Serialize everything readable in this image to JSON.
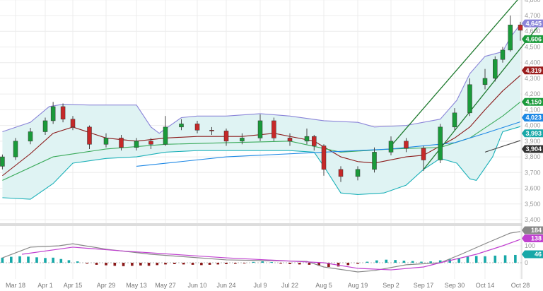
{
  "chart_data": {
    "type": "candlestick",
    "price_axis": {
      "ticks": [
        "4,800",
        "4,700",
        "4,600",
        "4,500",
        "4,400",
        "4,300",
        "4,200",
        "4,100",
        "4,000",
        "3,900",
        "3,800",
        "3,700",
        "3,600",
        "3,500",
        "3,400"
      ],
      "range": [
        3400,
        4700
      ]
    },
    "date_ticks": [
      "Mar 18",
      "Apr 1",
      "Apr 15",
      "Apr 29",
      "May 13",
      "May 27",
      "Jun 10",
      "Jun 24",
      "Jul 9",
      "Jul 22",
      "Aug 5",
      "Aug 19",
      "Sep 2",
      "Sep 17",
      "Sep 30",
      "Oct 14",
      "Oct 28"
    ],
    "grid": true,
    "candles": [
      [
        "Mar 12",
        3740,
        3815,
        3720,
        3800
      ],
      [
        "Mar 18",
        3800,
        3920,
        3780,
        3900
      ],
      [
        "Mar 25",
        3900,
        3985,
        3880,
        3960
      ],
      [
        "Apr 1",
        3960,
        4050,
        3940,
        4030
      ],
      [
        "Apr 5",
        4030,
        4150,
        4010,
        4120
      ],
      [
        "Apr 10",
        4120,
        4140,
        4020,
        4040
      ],
      [
        "Apr 15",
        4040,
        4060,
        3970,
        3990
      ],
      [
        "Apr 22",
        3990,
        4000,
        3850,
        3880
      ],
      [
        "Apr 29",
        3880,
        3950,
        3860,
        3920
      ],
      [
        "May 6",
        3920,
        3940,
        3840,
        3860
      ],
      [
        "May 13",
        3860,
        3920,
        3840,
        3900
      ],
      [
        "May 20",
        3900,
        3920,
        3850,
        3880
      ],
      [
        "May 27",
        3880,
        4060,
        3870,
        3990
      ],
      [
        "Jun 3",
        3990,
        4040,
        3970,
        4010
      ],
      [
        "Jun 10",
        4010,
        4030,
        3950,
        3970
      ],
      [
        "Jun 17",
        3970,
        3990,
        3940,
        3965
      ],
      [
        "Jun 24",
        3965,
        3980,
        3870,
        3900
      ],
      [
        "Jul 1",
        3900,
        3950,
        3880,
        3920
      ],
      [
        "Jul 9",
        3920,
        4070,
        3900,
        4030
      ],
      [
        "Jul 15",
        4030,
        4050,
        3900,
        3920
      ],
      [
        "Jul 22",
        3920,
        3950,
        3870,
        3900
      ],
      [
        "Jul 29",
        3900,
        3980,
        3880,
        3930
      ],
      [
        "Aug 1",
        3930,
        3940,
        3840,
        3870
      ],
      [
        "Aug 5",
        3870,
        3880,
        3680,
        3720
      ],
      [
        "Aug 12",
        3720,
        3740,
        3640,
        3675
      ],
      [
        "Aug 19",
        3675,
        3740,
        3650,
        3720
      ],
      [
        "Aug 26",
        3720,
        3860,
        3700,
        3830
      ],
      [
        "Sep 2",
        3830,
        3930,
        3810,
        3900
      ],
      [
        "Sep 9",
        3900,
        3920,
        3830,
        3855
      ],
      [
        "Sep 17",
        3855,
        3870,
        3710,
        3780
      ],
      [
        "Sep 24",
        3780,
        4010,
        3760,
        3990
      ],
      [
        "Sep 30",
        3990,
        4110,
        3970,
        4080
      ],
      [
        "Oct 7",
        4080,
        4300,
        4060,
        4260
      ],
      [
        "Oct 14",
        4260,
        4360,
        4230,
        4300
      ],
      [
        "Oct 18",
        4300,
        4440,
        4280,
        4420
      ],
      [
        "Oct 21",
        4420,
        4500,
        4400,
        4480
      ],
      [
        "Oct 24",
        4480,
        4700,
        4470,
        4640
      ],
      [
        "Oct 28",
        4640,
        4660,
        4540,
        4606
      ]
    ],
    "series": [
      {
        "key": "bb_upper",
        "color": "#8a84d8",
        "values": [
          [
            "Mar 12",
            3960
          ],
          [
            "Mar 25",
            4020
          ],
          [
            "Apr 3",
            4120
          ],
          [
            "Apr 10",
            4135
          ],
          [
            "Apr 22",
            4130
          ],
          [
            "May 6",
            4130
          ],
          [
            "May 13",
            4130
          ],
          [
            "May 20",
            3990
          ],
          [
            "May 24",
            3950
          ],
          [
            "Jun 3",
            4050
          ],
          [
            "Jun 10",
            4060
          ],
          [
            "Jun 24",
            4060
          ],
          [
            "Jul 9",
            4075
          ],
          [
            "Jul 22",
            4060
          ],
          [
            "Aug 5",
            4030
          ],
          [
            "Aug 19",
            4020
          ],
          [
            "Aug 26",
            3990
          ],
          [
            "Sep 9",
            4000
          ],
          [
            "Sep 24",
            4040
          ],
          [
            "Oct 1",
            4160
          ],
          [
            "Oct 7",
            4330
          ],
          [
            "Oct 14",
            4440
          ],
          [
            "Oct 21",
            4470
          ],
          [
            "Oct 24",
            4560
          ],
          [
            "Oct 28",
            4645
          ]
        ]
      },
      {
        "key": "bb_lower",
        "color": "#1bb0b8",
        "values": [
          [
            "Mar 12",
            3540
          ],
          [
            "Mar 25",
            3530
          ],
          [
            "Apr 5",
            3630
          ],
          [
            "Apr 15",
            3760
          ],
          [
            "Apr 29",
            3790
          ],
          [
            "May 13",
            3800
          ],
          [
            "May 27",
            3830
          ],
          [
            "Jun 10",
            3840
          ],
          [
            "Jul 9",
            3840
          ],
          [
            "Jul 22",
            3840
          ],
          [
            "Aug 1",
            3830
          ],
          [
            "Aug 5",
            3740
          ],
          [
            "Aug 12",
            3570
          ],
          [
            "Aug 19",
            3560
          ],
          [
            "Aug 30",
            3570
          ],
          [
            "Sep 9",
            3620
          ],
          [
            "Sep 17",
            3720
          ],
          [
            "Sep 24",
            3790
          ],
          [
            "Oct 1",
            3760
          ],
          [
            "Oct 7",
            3660
          ],
          [
            "Oct 10",
            3650
          ],
          [
            "Oct 17",
            3800
          ],
          [
            "Oct 21",
            3960
          ],
          [
            "Oct 28",
            3993
          ]
        ]
      },
      {
        "key": "ma_short",
        "color": "#8b1a1a",
        "values": [
          [
            "Mar 12",
            3680
          ],
          [
            "Mar 25",
            3820
          ],
          [
            "Apr 5",
            3950
          ],
          [
            "Apr 15",
            3990
          ],
          [
            "Apr 29",
            3920
          ],
          [
            "May 13",
            3900
          ],
          [
            "May 27",
            3920
          ],
          [
            "Jun 10",
            3930
          ],
          [
            "Jul 1",
            3930
          ],
          [
            "Jul 15",
            3950
          ],
          [
            "Aug 1",
            3900
          ],
          [
            "Aug 12",
            3800
          ],
          [
            "Aug 19",
            3770
          ],
          [
            "Aug 26",
            3760
          ],
          [
            "Sep 9",
            3800
          ],
          [
            "Sep 17",
            3810
          ],
          [
            "Sep 30",
            3920
          ],
          [
            "Oct 7",
            3990
          ],
          [
            "Oct 14",
            4100
          ],
          [
            "Oct 21",
            4220
          ],
          [
            "Oct 28",
            4319
          ]
        ]
      },
      {
        "key": "ma_mid",
        "color": "#3aaa5a",
        "values": [
          [
            "Mar 12",
            3650
          ],
          [
            "Apr 5",
            3800
          ],
          [
            "Apr 29",
            3850
          ],
          [
            "May 27",
            3880
          ],
          [
            "Jun 24",
            3890
          ],
          [
            "Jul 22",
            3900
          ],
          [
            "Aug 12",
            3830
          ],
          [
            "Sep 2",
            3850
          ],
          [
            "Sep 24",
            3860
          ],
          [
            "Oct 7",
            3920
          ],
          [
            "Oct 21",
            4060
          ],
          [
            "Oct 28",
            4150
          ]
        ]
      },
      {
        "key": "ma_long",
        "color": "#1e88e5",
        "values": [
          [
            "May 13",
            3740
          ],
          [
            "Jun 24",
            3800
          ],
          [
            "Aug 5",
            3830
          ],
          [
            "Sep 2",
            3850
          ],
          [
            "Sep 30",
            3890
          ],
          [
            "Oct 14",
            3950
          ],
          [
            "Oct 28",
            4023
          ]
        ]
      },
      {
        "key": "ma_gray",
        "color": "#444444",
        "values": [
          [
            "Oct 14",
            3830
          ],
          [
            "Oct 28",
            3904
          ]
        ]
      },
      {
        "key": "channel_upper",
        "color": "#1e7a2e",
        "values": [
          [
            "Sep 2",
            3870
          ],
          [
            "Oct 28",
            4820
          ]
        ]
      },
      {
        "key": "channel_lower",
        "color": "#1e7a2e",
        "values": [
          [
            "Sep 17",
            3720
          ],
          [
            "Oct 28",
            4490
          ]
        ]
      }
    ],
    "price_labels": [
      {
        "text": "4,645",
        "value": 4645,
        "color": "#8a84d8"
      },
      {
        "text": "4,606",
        "value": 4606,
        "color": "#1a9a3a"
      },
      {
        "text": "4,319",
        "value": 4319,
        "color": "#9b1c1c"
      },
      {
        "text": "4,150",
        "value": 4150,
        "color": "#1a9a3a"
      },
      {
        "text": "4,023",
        "value": 4023,
        "color": "#1e88e5"
      },
      {
        "text": "3,993",
        "value": 3993,
        "color": "#17a8a8"
      },
      {
        "text": "3,904",
        "value": 3904,
        "color": "#333333"
      }
    ],
    "indicator": {
      "ticks": [
        "100",
        "0"
      ],
      "range": [
        -96,
        208
      ],
      "line1": {
        "color": "#888888",
        "values": [
          [
            "Mar 12",
            29
          ],
          [
            "Mar 25",
            92
          ],
          [
            "Apr 8",
            100
          ],
          [
            "Apr 15",
            112
          ],
          [
            "Apr 29",
            80
          ],
          [
            "May 20",
            50
          ],
          [
            "Jun 24",
            17
          ],
          [
            "Jul 29",
            8
          ],
          [
            "Aug 5",
            -25
          ],
          [
            "Aug 19",
            -54
          ],
          [
            "Aug 26",
            -46
          ],
          [
            "Sep 9",
            -12
          ],
          [
            "Sep 24",
            0
          ],
          [
            "Oct 3",
            50
          ],
          [
            "Oct 14",
            112
          ],
          [
            "Oct 24",
            175
          ],
          [
            "Oct 28",
            184
          ]
        ]
      },
      "line2": {
        "color": "#c040d0",
        "values": [
          [
            "Mar 21",
            50
          ],
          [
            "Apr 15",
            92
          ],
          [
            "May 6",
            70
          ],
          [
            "Jun 24",
            29
          ],
          [
            "Aug 5",
            0
          ],
          [
            "Aug 19",
            -33
          ],
          [
            "Sep 2",
            -42
          ],
          [
            "Sep 17",
            -25
          ],
          [
            "Sep 24",
            0
          ],
          [
            "Oct 10",
            50
          ],
          [
            "Oct 21",
            100
          ],
          [
            "Oct 28",
            138
          ]
        ]
      },
      "pos_color": "#17a8a8",
      "neg_color": "#8b1a1a",
      "histogram": [
        [
          "Mar 12",
          30
        ],
        [
          "Mar 16",
          35
        ],
        [
          "Mar 20",
          38
        ],
        [
          "Mar 24",
          36
        ],
        [
          "Mar 28",
          32
        ],
        [
          "Apr 1",
          28
        ],
        [
          "Apr 5",
          30
        ],
        [
          "Apr 9",
          22
        ],
        [
          "Apr 13",
          15
        ],
        [
          "Apr 17",
          8
        ],
        [
          "Apr 21",
          -5
        ],
        [
          "Apr 25",
          -12
        ],
        [
          "Apr 29",
          -15
        ],
        [
          "May 3",
          -18
        ],
        [
          "May 7",
          -20
        ],
        [
          "May 11",
          -18
        ],
        [
          "May 15",
          -16
        ],
        [
          "May 19",
          -18
        ],
        [
          "May 23",
          -14
        ],
        [
          "May 27",
          -10
        ],
        [
          "May 31",
          -8
        ],
        [
          "Jun 4",
          -10
        ],
        [
          "Jun 8",
          -12
        ],
        [
          "Jun 12",
          -14
        ],
        [
          "Jun 16",
          -12
        ],
        [
          "Jun 20",
          -10
        ],
        [
          "Jun 24",
          -8
        ],
        [
          "Jun 28",
          -6
        ],
        [
          "Jul 2",
          -4
        ],
        [
          "Jul 6",
          5
        ],
        [
          "Jul 10",
          8
        ],
        [
          "Jul 14",
          4
        ],
        [
          "Jul 18",
          -5
        ],
        [
          "Jul 22",
          -8
        ],
        [
          "Jul 26",
          -10
        ],
        [
          "Jul 30",
          -12
        ],
        [
          "Aug 3",
          -18
        ],
        [
          "Aug 7",
          -25
        ],
        [
          "Aug 11",
          -22
        ],
        [
          "Aug 15",
          -14
        ],
        [
          "Aug 19",
          -6
        ],
        [
          "Aug 23",
          6
        ],
        [
          "Aug 27",
          14
        ],
        [
          "Aug 31",
          18
        ],
        [
          "Sep 4",
          16
        ],
        [
          "Sep 8",
          12
        ],
        [
          "Sep 12",
          10
        ],
        [
          "Sep 16",
          6
        ],
        [
          "Sep 20",
          8
        ],
        [
          "Sep 24",
          14
        ],
        [
          "Sep 28",
          20
        ],
        [
          "Oct 2",
          28
        ],
        [
          "Oct 6",
          36
        ],
        [
          "Oct 10",
          40
        ],
        [
          "Oct 14",
          38
        ],
        [
          "Oct 18",
          42
        ],
        [
          "Oct 22",
          44
        ],
        [
          "Oct 26",
          46
        ]
      ],
      "labels": [
        {
          "text": "184",
          "value": 184,
          "color": "#888888"
        },
        {
          "text": "138",
          "value": 138,
          "color": "#c040d0"
        },
        {
          "text": "46",
          "value": 46,
          "color": "#17a8a8"
        }
      ]
    },
    "band_fill": "#dff3f3"
  }
}
